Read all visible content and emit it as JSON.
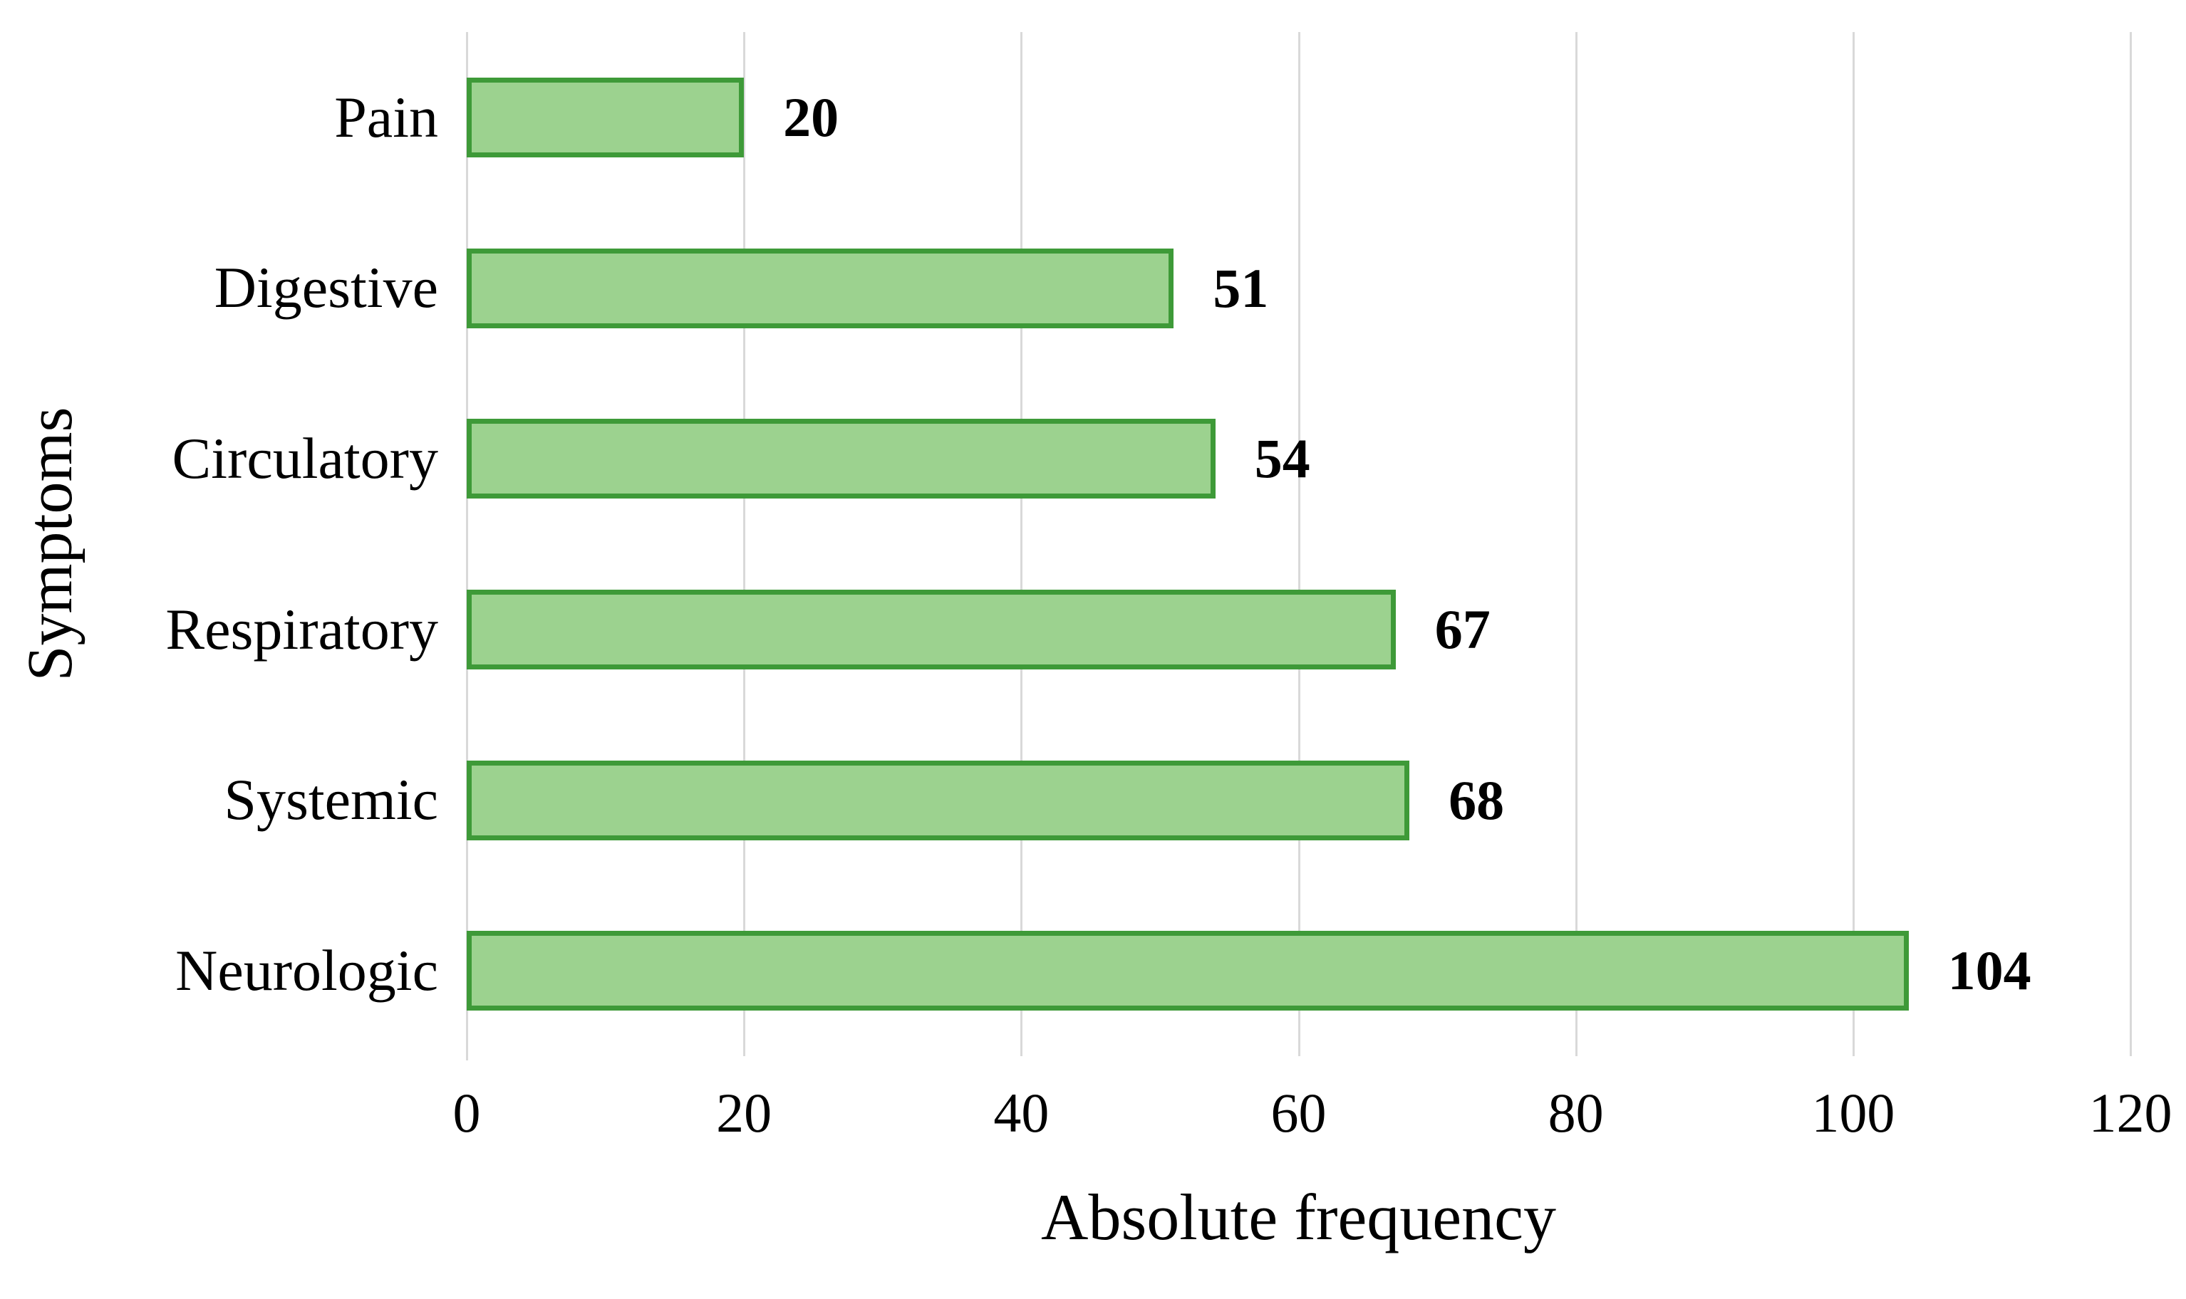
{
  "chart_data": {
    "type": "bar",
    "orientation": "horizontal",
    "title": "",
    "categories": [
      "Pain",
      "Digestive",
      "Circulatory",
      "Respiratory",
      "Systemic",
      "Neurologic"
    ],
    "values": [
      20,
      51,
      54,
      67,
      68,
      104
    ],
    "data_labels": [
      "20",
      "51",
      "54",
      "67",
      "68",
      "104"
    ],
    "xlabel": "Absolute frequency",
    "ylabel": "Symptoms",
    "xlim": [
      0,
      120
    ],
    "xticks": [
      0,
      20,
      40,
      60,
      80,
      100,
      120
    ],
    "xtick_labels": [
      "0",
      "20",
      "40",
      "60",
      "80",
      "100",
      "120"
    ],
    "grid": "vertical-only",
    "legend": "none",
    "colors": {
      "bar_fill": "#9CD28F",
      "bar_border": "#3E9A38",
      "gridline": "#D9D9D9",
      "text": "#000000",
      "background": "#FFFFFF"
    }
  }
}
